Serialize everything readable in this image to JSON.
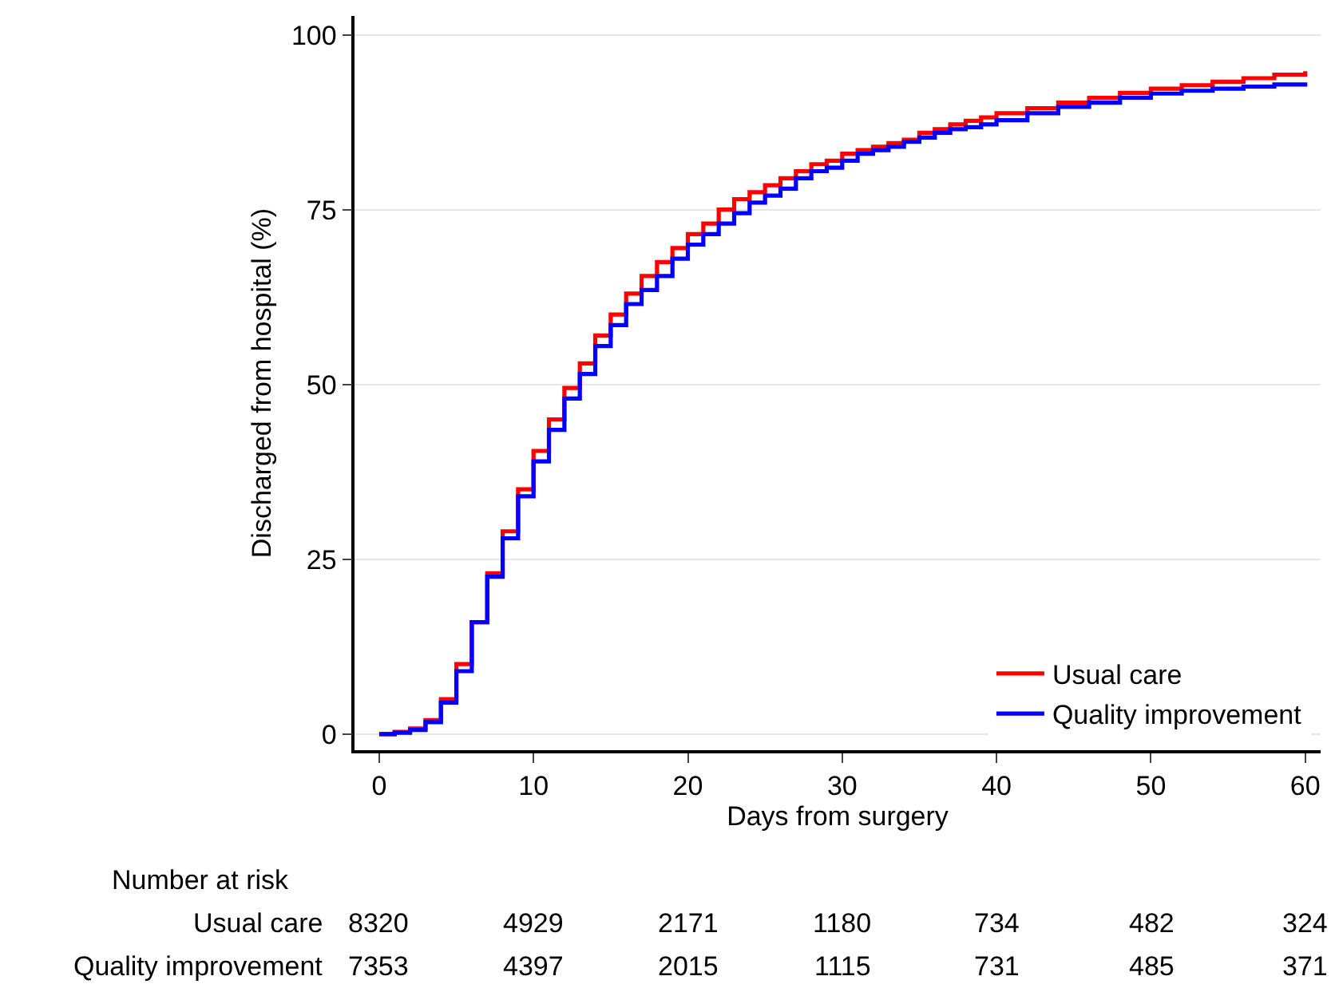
{
  "chart_data": {
    "type": "step",
    "xlabel": "Days from surgery",
    "ylabel": "Discharged from hospital (%)",
    "x": [
      0,
      1,
      2,
      3,
      4,
      5,
      6,
      7,
      8,
      9,
      10,
      11,
      12,
      13,
      14,
      15,
      16,
      17,
      18,
      19,
      20,
      21,
      22,
      23,
      24,
      25,
      26,
      27,
      28,
      29,
      30,
      31,
      32,
      33,
      34,
      35,
      36,
      37,
      38,
      39,
      40,
      42,
      44,
      46,
      48,
      50,
      52,
      54,
      56,
      58,
      60
    ],
    "series": [
      {
        "name": "Usual care",
        "color": "#ff0000",
        "values": [
          0,
          0.3,
          0.8,
          2,
          5,
          10,
          16,
          23,
          29,
          35,
          40.5,
          45,
          49.5,
          53,
          57,
          60,
          63,
          65.5,
          67.5,
          69.5,
          71.5,
          73,
          75,
          76.5,
          77.5,
          78.5,
          79.5,
          80.5,
          81.5,
          82,
          83,
          83.5,
          84,
          84.5,
          85,
          86,
          86.5,
          87.2,
          87.7,
          88.2,
          88.8,
          89.5,
          90.3,
          91,
          91.7,
          92.3,
          92.8,
          93.3,
          93.8,
          94.3,
          94.8
        ]
      },
      {
        "name": "Quality improvement",
        "color": "#0000ff",
        "values": [
          0,
          0.2,
          0.6,
          1.7,
          4.5,
          9,
          16,
          22.5,
          28,
          34,
          39,
          43.5,
          48,
          51.5,
          55.5,
          58.5,
          61.5,
          63.5,
          65.5,
          68,
          70,
          71.5,
          73,
          74.5,
          76,
          77,
          78,
          79.5,
          80.5,
          81,
          82,
          83,
          83.5,
          84,
          84.7,
          85.3,
          86,
          86.5,
          86.8,
          87.2,
          87.8,
          88.8,
          89.7,
          90.3,
          91,
          91.6,
          92,
          92.3,
          92.6,
          92.9,
          93.2
        ]
      }
    ],
    "xlim": [
      -1.6,
      61
    ],
    "xticks": [
      0,
      10,
      20,
      30,
      40,
      50,
      60
    ],
    "ylim": [
      -2.3,
      102.7
    ],
    "yticks": [
      0,
      25,
      50,
      75,
      100
    ],
    "grid": "y",
    "legend": "bottom right",
    "line_style": "solid",
    "marker": "none",
    "annotations": [
      "Number at risk",
      "Usual care",
      "8320",
      "4929",
      "2171",
      "1180",
      "734",
      "482",
      "324",
      "Quality improvement",
      "7353",
      "4397",
      "2015",
      "1115",
      "731",
      "485",
      "371"
    ]
  }
}
